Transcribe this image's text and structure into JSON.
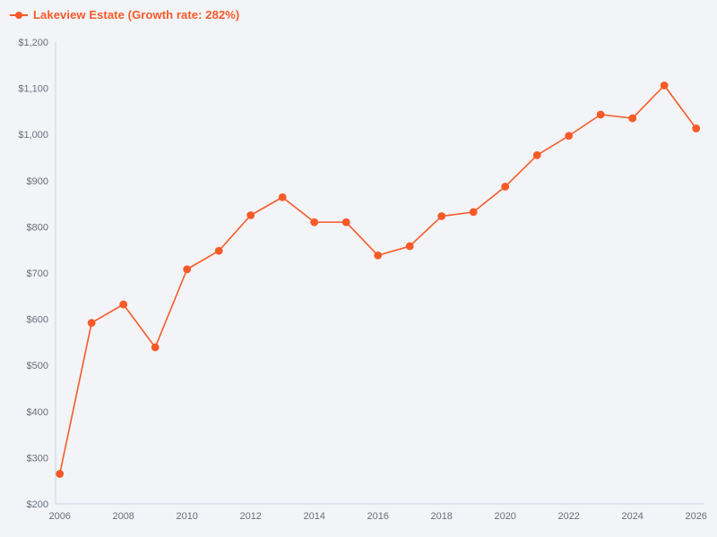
{
  "chart_data": {
    "type": "line",
    "title": "",
    "legend": "Lakeview Estate (Growth rate: 282%)",
    "series_name": "Lakeview Estate",
    "growth_rate": "282%",
    "x": [
      2006,
      2007,
      2008,
      2009,
      2010,
      2011,
      2012,
      2013,
      2014,
      2015,
      2016,
      2017,
      2018,
      2019,
      2020,
      2021,
      2022,
      2023,
      2024,
      2025,
      2026
    ],
    "values": [
      265,
      592,
      632,
      539,
      708,
      748,
      825,
      864,
      810,
      810,
      738,
      758,
      823,
      832,
      887,
      955,
      997,
      1043,
      1035,
      1106,
      1013
    ],
    "value_prefix": "$",
    "xlabel": "",
    "ylabel": "",
    "ylim": [
      200,
      1200
    ],
    "y_tick_values": [
      200,
      300,
      400,
      500,
      600,
      700,
      800,
      900,
      1000,
      1100,
      1200
    ],
    "y_tick_labels": [
      "$200",
      "$300",
      "$400",
      "$500",
      "$600",
      "$700",
      "$800",
      "$900",
      "$1,000",
      "$1,100",
      "$1,200"
    ],
    "x_tick_values": [
      2006,
      2008,
      2010,
      2012,
      2014,
      2016,
      2018,
      2020,
      2022,
      2024,
      2026
    ],
    "x_tick_labels": [
      "2006",
      "2008",
      "2010",
      "2012",
      "2014",
      "2016",
      "2018",
      "2020",
      "2022",
      "2024",
      "2026"
    ],
    "grid": "off",
    "legend_position": "top-left",
    "marker": "circle",
    "colors": {
      "accent": "#f75a28",
      "background": "#f2f4f7",
      "axis_line": "#c9d4e4",
      "tick_text": "#69707b"
    }
  }
}
